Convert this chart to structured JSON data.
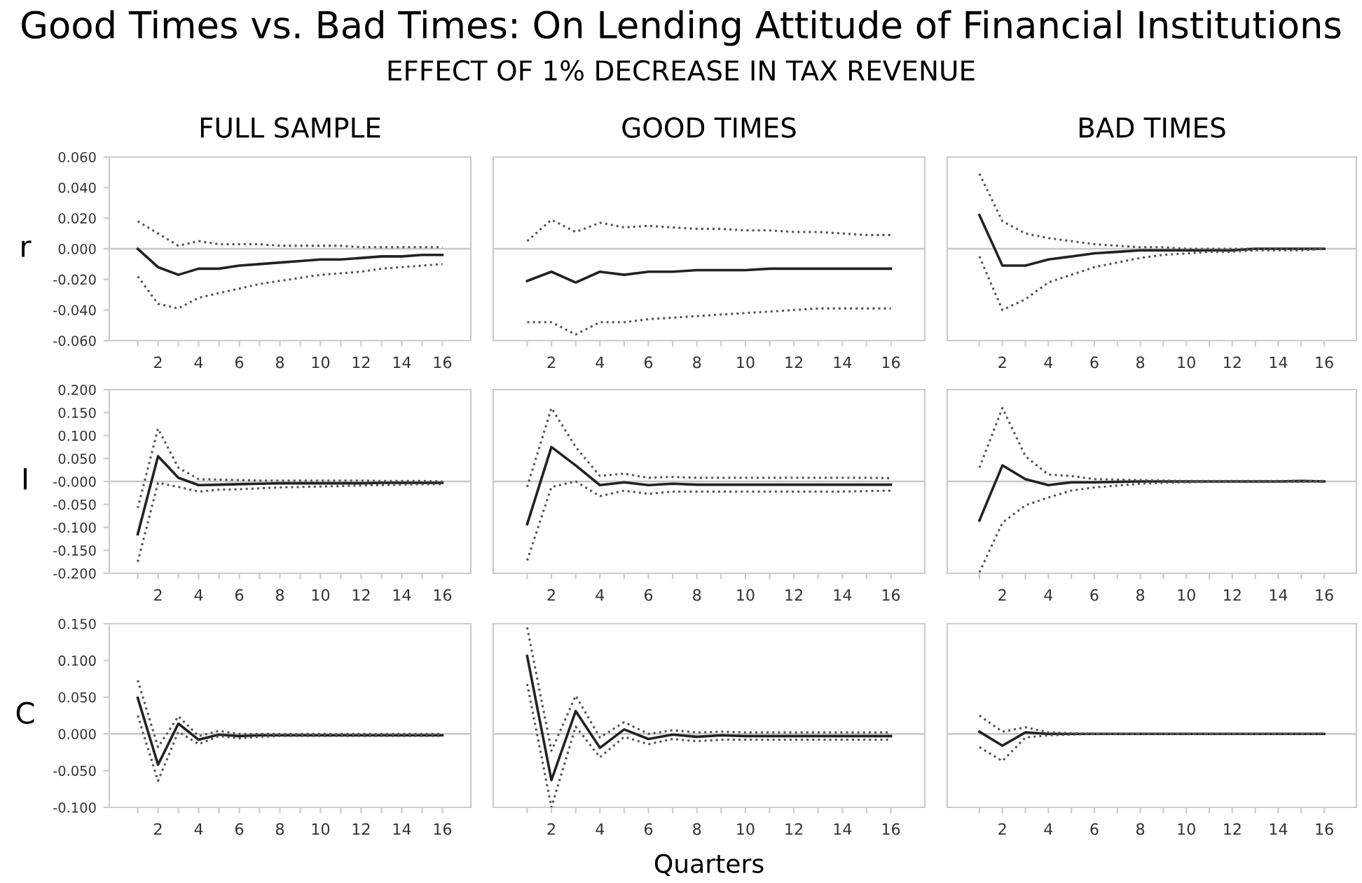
{
  "chart_data": [
    {
      "type": "line",
      "title": "FULL SAMPLE",
      "ylabel": "r",
      "annotations": [
        "Good Times vs. Bad Times: On Lending Attitude of Financial Institutions",
        "EFFECT OF 1% DECREASE IN TAX REVENUE"
      ],
      "x": [
        1,
        2,
        3,
        4,
        5,
        6,
        7,
        8,
        9,
        10,
        11,
        12,
        13,
        14,
        15,
        16
      ],
      "xlim": [
        -0.4,
        17.4
      ],
      "xticks": [
        {
          "value": 1,
          "label": null
        },
        2,
        {
          "value": 3,
          "label": null
        },
        4,
        {
          "value": 5,
          "label": null
        },
        6,
        {
          "value": 7,
          "label": null
        },
        8,
        {
          "value": 9,
          "label": null
        },
        10,
        {
          "value": 11,
          "label": null
        },
        12,
        {
          "value": 13,
          "label": null
        },
        14,
        {
          "value": 15,
          "label": null
        },
        16
      ],
      "ylim": [
        -0.06,
        0.06
      ],
      "yticks": [
        {
          "value": -0.06,
          "label": "-0.060"
        },
        {
          "value": -0.04,
          "label": "-0.040"
        },
        {
          "value": -0.02,
          "label": "-0.020"
        },
        {
          "value": 0,
          "label": "0.000"
        },
        {
          "value": 0.02,
          "label": "0.020"
        },
        {
          "value": 0.04,
          "label": "0.040"
        },
        {
          "value": 0.06,
          "label": "0.060"
        }
      ],
      "ref_lines": [
        {
          "axis": "y",
          "value": 0,
          "color": "#c8c8c8"
        }
      ],
      "series": [
        {
          "color": "#222222",
          "line_style": "solid",
          "values": [
            0.0,
            -0.012,
            -0.017,
            -0.013,
            -0.013,
            -0.011,
            -0.01,
            -0.009,
            -0.008,
            -0.007,
            -0.007,
            -0.006,
            -0.005,
            -0.005,
            -0.004,
            -0.004
          ]
        },
        {
          "color": "#555555",
          "line_style": "dotted",
          "values": [
            0.018,
            0.01,
            0.002,
            0.005,
            0.003,
            0.003,
            0.003,
            0.002,
            0.002,
            0.002,
            0.002,
            0.001,
            0.001,
            0.001,
            0.001,
            0.001
          ]
        },
        {
          "color": "#555555",
          "line_style": "dotted",
          "values": [
            -0.018,
            -0.036,
            -0.039,
            -0.032,
            -0.029,
            -0.026,
            -0.023,
            -0.021,
            -0.019,
            -0.017,
            -0.016,
            -0.015,
            -0.013,
            -0.012,
            -0.011,
            -0.01
          ]
        }
      ]
    },
    {
      "type": "line",
      "title": "GOOD TIMES",
      "tick_labels": "x",
      "x": [
        1,
        2,
        3,
        4,
        5,
        6,
        7,
        8,
        9,
        10,
        11,
        12,
        13,
        14,
        15,
        16
      ],
      "xlim": [
        -0.4,
        17.4
      ],
      "xticks": [
        {
          "value": 1,
          "label": null
        },
        2,
        {
          "value": 3,
          "label": null
        },
        4,
        {
          "value": 5,
          "label": null
        },
        6,
        {
          "value": 7,
          "label": null
        },
        8,
        {
          "value": 9,
          "label": null
        },
        10,
        {
          "value": 11,
          "label": null
        },
        12,
        {
          "value": 13,
          "label": null
        },
        14,
        {
          "value": 15,
          "label": null
        },
        16
      ],
      "ylim": [
        -0.06,
        0.06
      ],
      "ref_lines": [
        {
          "axis": "y",
          "value": 0,
          "color": "#c8c8c8"
        }
      ],
      "series": [
        {
          "color": "#222222",
          "line_style": "solid",
          "values": [
            -0.021,
            -0.015,
            -0.022,
            -0.015,
            -0.017,
            -0.015,
            -0.015,
            -0.014,
            -0.014,
            -0.014,
            -0.013,
            -0.013,
            -0.013,
            -0.013,
            -0.013,
            -0.013
          ]
        },
        {
          "color": "#555555",
          "line_style": "dotted",
          "values": [
            0.005,
            0.019,
            0.011,
            0.017,
            0.014,
            0.015,
            0.014,
            0.013,
            0.013,
            0.012,
            0.012,
            0.011,
            0.011,
            0.01,
            0.009,
            0.009
          ]
        },
        {
          "color": "#555555",
          "line_style": "dotted",
          "values": [
            -0.048,
            -0.048,
            -0.056,
            -0.048,
            -0.048,
            -0.046,
            -0.045,
            -0.044,
            -0.043,
            -0.042,
            -0.041,
            -0.04,
            -0.039,
            -0.039,
            -0.039,
            -0.039
          ]
        }
      ]
    },
    {
      "type": "line",
      "title": "BAD TIMES",
      "tick_labels": "x",
      "x": [
        1,
        2,
        3,
        4,
        5,
        6,
        7,
        8,
        9,
        10,
        11,
        12,
        13,
        14,
        15,
        16
      ],
      "xlim": [
        -0.4,
        17.4
      ],
      "xticks": [
        {
          "value": 1,
          "label": null
        },
        2,
        {
          "value": 3,
          "label": null
        },
        4,
        {
          "value": 5,
          "label": null
        },
        6,
        {
          "value": 7,
          "label": null
        },
        8,
        {
          "value": 9,
          "label": null
        },
        10,
        {
          "value": 11,
          "label": null
        },
        12,
        {
          "value": 13,
          "label": null
        },
        14,
        {
          "value": 15,
          "label": null
        },
        16
      ],
      "ylim": [
        -0.06,
        0.06
      ],
      "ref_lines": [
        {
          "axis": "y",
          "value": 0,
          "color": "#c8c8c8"
        }
      ],
      "series": [
        {
          "color": "#222222",
          "line_style": "solid",
          "values": [
            0.022,
            -0.011,
            -0.011,
            -0.007,
            -0.005,
            -0.003,
            -0.002,
            -0.001,
            -0.001,
            -0.001,
            -0.001,
            -0.001,
            0.0,
            0.0,
            0.0,
            0.0
          ]
        },
        {
          "color": "#555555",
          "line_style": "dotted",
          "values": [
            0.049,
            0.018,
            0.01,
            0.007,
            0.005,
            0.003,
            0.002,
            0.001,
            0.001,
            0.0,
            0.0,
            0.0,
            0.0,
            0.0,
            0.0,
            0.0
          ]
        },
        {
          "color": "#555555",
          "line_style": "dotted",
          "values": [
            -0.005,
            -0.04,
            -0.033,
            -0.022,
            -0.017,
            -0.012,
            -0.009,
            -0.006,
            -0.004,
            -0.003,
            -0.002,
            -0.002,
            -0.001,
            -0.001,
            -0.001,
            0.0
          ]
        }
      ]
    },
    {
      "type": "line",
      "ylabel": "I",
      "x": [
        1,
        2,
        3,
        4,
        5,
        6,
        7,
        8,
        9,
        10,
        11,
        12,
        13,
        14,
        15,
        16
      ],
      "xlim": [
        -0.4,
        17.4
      ],
      "xticks": [
        {
          "value": 1,
          "label": null
        },
        2,
        {
          "value": 3,
          "label": null
        },
        4,
        {
          "value": 5,
          "label": null
        },
        6,
        {
          "value": 7,
          "label": null
        },
        8,
        {
          "value": 9,
          "label": null
        },
        10,
        {
          "value": 11,
          "label": null
        },
        12,
        {
          "value": 13,
          "label": null
        },
        14,
        {
          "value": 15,
          "label": null
        },
        16
      ],
      "ylim": [
        -0.2,
        0.2
      ],
      "yticks": [
        {
          "value": -0.2,
          "label": "-0.200"
        },
        {
          "value": -0.15,
          "label": "-0.150"
        },
        {
          "value": -0.1,
          "label": "-0.100"
        },
        {
          "value": -0.05,
          "label": "-0.050"
        },
        {
          "value": 0,
          "label": "-0.000"
        },
        {
          "value": 0.05,
          "label": "0.050"
        },
        {
          "value": 0.1,
          "label": "0.100"
        },
        {
          "value": 0.15,
          "label": "0.150"
        },
        {
          "value": 0.2,
          "label": "0.200"
        }
      ],
      "ref_lines": [
        {
          "axis": "y",
          "value": 0,
          "color": "#c8c8c8"
        }
      ],
      "series": [
        {
          "color": "#222222",
          "line_style": "solid",
          "values": [
            -0.115,
            0.055,
            0.008,
            -0.008,
            -0.007,
            -0.006,
            -0.005,
            -0.004,
            -0.004,
            -0.004,
            -0.004,
            -0.004,
            -0.003,
            -0.003,
            -0.003,
            -0.003
          ]
        },
        {
          "color": "#555555",
          "line_style": "dotted",
          "values": [
            -0.058,
            0.115,
            0.03,
            0.005,
            0.004,
            0.003,
            0.002,
            0.002,
            0.002,
            0.002,
            0.002,
            0.002,
            0.001,
            0.001,
            0.001,
            0.0
          ]
        },
        {
          "color": "#555555",
          "line_style": "dotted",
          "values": [
            -0.175,
            -0.003,
            -0.012,
            -0.022,
            -0.018,
            -0.017,
            -0.015,
            -0.013,
            -0.012,
            -0.011,
            -0.01,
            -0.009,
            -0.008,
            -0.007,
            -0.006,
            -0.006
          ]
        }
      ]
    },
    {
      "type": "line",
      "tick_labels": "x",
      "x": [
        1,
        2,
        3,
        4,
        5,
        6,
        7,
        8,
        9,
        10,
        11,
        12,
        13,
        14,
        15,
        16
      ],
      "xlim": [
        -0.4,
        17.4
      ],
      "xticks": [
        {
          "value": 1,
          "label": null
        },
        2,
        {
          "value": 3,
          "label": null
        },
        4,
        {
          "value": 5,
          "label": null
        },
        6,
        {
          "value": 7,
          "label": null
        },
        8,
        {
          "value": 9,
          "label": null
        },
        10,
        {
          "value": 11,
          "label": null
        },
        12,
        {
          "value": 13,
          "label": null
        },
        14,
        {
          "value": 15,
          "label": null
        },
        16
      ],
      "ylim": [
        -0.2,
        0.2
      ],
      "ref_lines": [
        {
          "axis": "y",
          "value": 0,
          "color": "#c8c8c8"
        }
      ],
      "series": [
        {
          "color": "#222222",
          "line_style": "solid",
          "values": [
            -0.093,
            0.075,
            0.035,
            -0.008,
            -0.002,
            -0.008,
            -0.005,
            -0.007,
            -0.007,
            -0.007,
            -0.007,
            -0.007,
            -0.007,
            -0.007,
            -0.007,
            -0.007
          ]
        },
        {
          "color": "#555555",
          "line_style": "dotted",
          "values": [
            -0.012,
            0.16,
            0.075,
            0.012,
            0.017,
            0.008,
            0.01,
            0.008,
            0.008,
            0.008,
            0.008,
            0.008,
            0.008,
            0.008,
            0.008,
            0.007
          ]
        },
        {
          "color": "#555555",
          "line_style": "dotted",
          "values": [
            -0.172,
            -0.012,
            0.0,
            -0.032,
            -0.02,
            -0.027,
            -0.022,
            -0.022,
            -0.022,
            -0.022,
            -0.022,
            -0.022,
            -0.022,
            -0.022,
            -0.021,
            -0.02
          ]
        }
      ]
    },
    {
      "type": "line",
      "tick_labels": "x",
      "x": [
        1,
        2,
        3,
        4,
        5,
        6,
        7,
        8,
        9,
        10,
        11,
        12,
        13,
        14,
        15,
        16
      ],
      "xlim": [
        -0.4,
        17.4
      ],
      "xticks": [
        {
          "value": 1,
          "label": null
        },
        2,
        {
          "value": 3,
          "label": null
        },
        4,
        {
          "value": 5,
          "label": null
        },
        6,
        {
          "value": 7,
          "label": null
        },
        8,
        {
          "value": 9,
          "label": null
        },
        10,
        {
          "value": 11,
          "label": null
        },
        12,
        {
          "value": 13,
          "label": null
        },
        14,
        {
          "value": 15,
          "label": null
        },
        16
      ],
      "ylim": [
        -0.2,
        0.2
      ],
      "ref_lines": [
        {
          "axis": "y",
          "value": 0,
          "color": "#c8c8c8"
        }
      ],
      "series": [
        {
          "color": "#222222",
          "line_style": "solid",
          "values": [
            -0.085,
            0.035,
            0.005,
            -0.008,
            -0.002,
            -0.002,
            -0.001,
            0.0,
            0.0,
            0.0,
            0.0,
            0.0,
            0.0,
            0.0,
            0.001,
            0.0
          ]
        },
        {
          "color": "#555555",
          "line_style": "dotted",
          "values": [
            0.03,
            0.16,
            0.055,
            0.015,
            0.012,
            0.005,
            0.004,
            0.003,
            0.002,
            0.001,
            0.001,
            0.001,
            0.001,
            0.001,
            0.001,
            0.001
          ]
        },
        {
          "color": "#555555",
          "line_style": "dotted",
          "values": [
            -0.198,
            -0.09,
            -0.052,
            -0.035,
            -0.02,
            -0.013,
            -0.009,
            -0.005,
            -0.003,
            -0.002,
            -0.001,
            -0.001,
            -0.001,
            -0.001,
            -0.001,
            0.0
          ]
        }
      ]
    },
    {
      "type": "line",
      "ylabel": "C",
      "x": [
        1,
        2,
        3,
        4,
        5,
        6,
        7,
        8,
        9,
        10,
        11,
        12,
        13,
        14,
        15,
        16
      ],
      "xlim": [
        -0.4,
        17.4
      ],
      "xticks": [
        {
          "value": 1,
          "label": null
        },
        2,
        {
          "value": 3,
          "label": null
        },
        4,
        {
          "value": 5,
          "label": null
        },
        6,
        {
          "value": 7,
          "label": null
        },
        8,
        {
          "value": 9,
          "label": null
        },
        10,
        {
          "value": 11,
          "label": null
        },
        12,
        {
          "value": 13,
          "label": null
        },
        14,
        {
          "value": 15,
          "label": null
        },
        16
      ],
      "ylim": [
        -0.1,
        0.15
      ],
      "yticks": [
        {
          "value": -0.1,
          "label": "-0.100"
        },
        {
          "value": -0.05,
          "label": "-0.050"
        },
        {
          "value": 0,
          "label": "0.000"
        },
        {
          "value": 0.05,
          "label": "0.050"
        },
        {
          "value": 0.1,
          "label": "0.100"
        },
        {
          "value": 0.15,
          "label": "0.150"
        }
      ],
      "ref_lines": [
        {
          "axis": "y",
          "value": 0,
          "color": "#c8c8c8"
        }
      ],
      "series": [
        {
          "color": "#222222",
          "line_style": "solid",
          "values": [
            0.049,
            -0.042,
            0.014,
            -0.008,
            -0.001,
            -0.003,
            -0.002,
            -0.002,
            -0.002,
            -0.002,
            -0.002,
            -0.002,
            -0.002,
            -0.002,
            -0.002,
            -0.002
          ]
        },
        {
          "color": "#555555",
          "line_style": "dotted",
          "values": [
            0.073,
            -0.018,
            0.024,
            -0.003,
            0.004,
            0.0,
            0.0,
            0.0,
            0.0,
            0.0,
            0.0,
            0.0,
            0.0,
            0.0,
            0.0,
            0.0
          ]
        },
        {
          "color": "#555555",
          "line_style": "dotted",
          "values": [
            0.025,
            -0.064,
            0.003,
            -0.014,
            -0.003,
            -0.006,
            -0.004,
            -0.003,
            -0.003,
            -0.003,
            -0.003,
            -0.003,
            -0.003,
            -0.003,
            -0.003,
            -0.003
          ]
        }
      ]
    },
    {
      "type": "line",
      "xlabel": "Quarters",
      "tick_labels": "x",
      "x": [
        1,
        2,
        3,
        4,
        5,
        6,
        7,
        8,
        9,
        10,
        11,
        12,
        13,
        14,
        15,
        16
      ],
      "xlim": [
        -0.4,
        17.4
      ],
      "xticks": [
        {
          "value": 1,
          "label": null
        },
        2,
        {
          "value": 3,
          "label": null
        },
        4,
        {
          "value": 5,
          "label": null
        },
        6,
        {
          "value": 7,
          "label": null
        },
        8,
        {
          "value": 9,
          "label": null
        },
        10,
        {
          "value": 11,
          "label": null
        },
        12,
        {
          "value": 13,
          "label": null
        },
        14,
        {
          "value": 15,
          "label": null
        },
        16
      ],
      "ylim": [
        -0.1,
        0.15
      ],
      "ref_lines": [
        {
          "axis": "y",
          "value": 0,
          "color": "#c8c8c8"
        }
      ],
      "series": [
        {
          "color": "#222222",
          "line_style": "solid",
          "values": [
            0.106,
            -0.063,
            0.031,
            -0.019,
            0.006,
            -0.007,
            -0.001,
            -0.004,
            -0.002,
            -0.003,
            -0.003,
            -0.003,
            -0.003,
            -0.003,
            -0.003,
            -0.003
          ]
        },
        {
          "color": "#555555",
          "line_style": "dotted",
          "values": [
            0.145,
            -0.023,
            0.052,
            -0.005,
            0.016,
            0.0,
            0.005,
            0.002,
            0.003,
            0.002,
            0.002,
            0.002,
            0.002,
            0.002,
            0.002,
            0.002
          ]
        },
        {
          "color": "#555555",
          "line_style": "dotted",
          "values": [
            0.068,
            -0.1,
            0.01,
            -0.032,
            -0.004,
            -0.014,
            -0.007,
            -0.01,
            -0.008,
            -0.008,
            -0.008,
            -0.008,
            -0.008,
            -0.008,
            -0.008,
            -0.008
          ]
        }
      ]
    },
    {
      "type": "line",
      "tick_labels": "x",
      "x": [
        1,
        2,
        3,
        4,
        5,
        6,
        7,
        8,
        9,
        10,
        11,
        12,
        13,
        14,
        15,
        16
      ],
      "xlim": [
        -0.4,
        17.4
      ],
      "xticks": [
        {
          "value": 1,
          "label": null
        },
        2,
        {
          "value": 3,
          "label": null
        },
        4,
        {
          "value": 5,
          "label": null
        },
        6,
        {
          "value": 7,
          "label": null
        },
        8,
        {
          "value": 9,
          "label": null
        },
        10,
        {
          "value": 11,
          "label": null
        },
        12,
        {
          "value": 13,
          "label": null
        },
        14,
        {
          "value": 15,
          "label": null
        },
        16
      ],
      "ylim": [
        -0.1,
        0.15
      ],
      "ref_lines": [
        {
          "axis": "y",
          "value": 0,
          "color": "#c8c8c8"
        }
      ],
      "series": [
        {
          "color": "#222222",
          "line_style": "solid",
          "values": [
            0.003,
            -0.016,
            0.002,
            0.0,
            0.0,
            0.0,
            0.0,
            0.0,
            0.0,
            0.0,
            0.0,
            0.0,
            0.0,
            0.0,
            0.0,
            0.0
          ]
        },
        {
          "color": "#555555",
          "line_style": "dotted",
          "values": [
            0.025,
            0.003,
            0.009,
            0.002,
            0.001,
            0.0,
            0.0,
            0.0,
            0.0,
            0.0,
            0.0,
            0.0,
            0.0,
            0.0,
            0.0,
            0.0
          ]
        },
        {
          "color": "#555555",
          "line_style": "dotted",
          "values": [
            -0.018,
            -0.037,
            -0.005,
            -0.002,
            -0.001,
            0.0,
            0.0,
            0.0,
            0.0,
            0.0,
            0.0,
            0.0,
            0.0,
            0.0,
            0.0,
            0.0
          ]
        }
      ]
    }
  ]
}
